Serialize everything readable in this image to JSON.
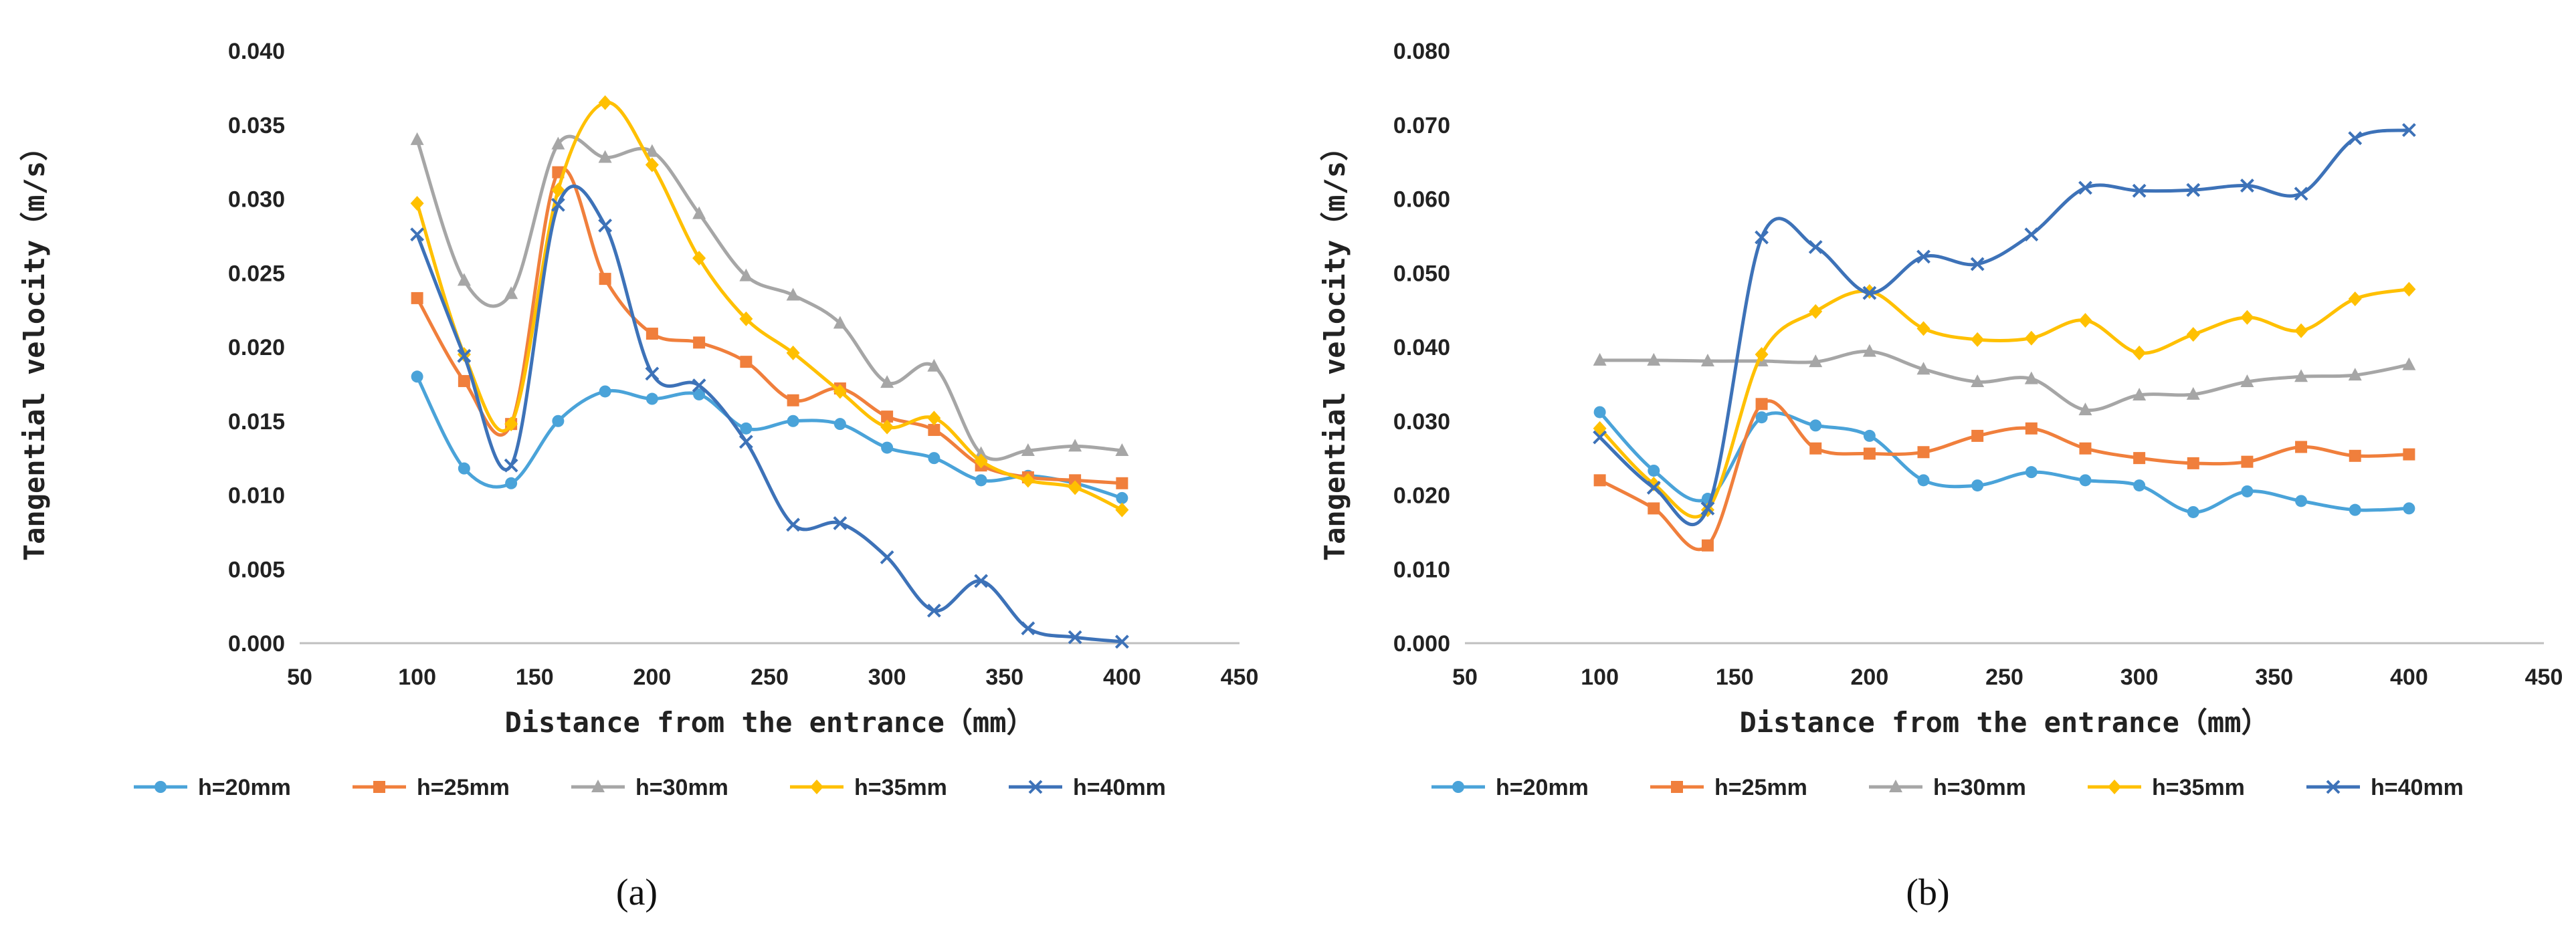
{
  "colors": {
    "h20": "#4aa3d9",
    "h25": "#f07f3c",
    "h30": "#a6a6a6",
    "h35": "#ffc000",
    "h40": "#3d72b8"
  },
  "chart_data": [
    {
      "type": "line",
      "panel_label": "(a)",
      "xlabel": "Distance from the entrance（mm）",
      "ylabel": "Tangential velocity（m/s）",
      "xlim": [
        50,
        450
      ],
      "ylim": [
        0,
        0.04
      ],
      "x_ticks": [
        "50",
        "100",
        "150",
        "200",
        "250",
        "300",
        "350",
        "400",
        "450"
      ],
      "y_ticks": [
        "0.000",
        "0.005",
        "0.010",
        "0.015",
        "0.020",
        "0.025",
        "0.030",
        "0.035",
        "0.040"
      ],
      "legend": "bottom",
      "x": [
        100,
        120,
        140,
        160,
        180,
        200,
        220,
        240,
        260,
        280,
        300,
        320,
        340,
        360,
        380,
        400
      ],
      "series": [
        {
          "name": "h=20mm",
          "color_key": "h20",
          "marker": "circle",
          "values": [
            0.018,
            0.0118,
            0.0108,
            0.015,
            0.017,
            0.0165,
            0.0168,
            0.0145,
            0.015,
            0.0148,
            0.0132,
            0.0125,
            0.011,
            0.0113,
            0.0108,
            0.0098
          ]
        },
        {
          "name": "h=25mm",
          "color_key": "h25",
          "marker": "square",
          "values": [
            0.0233,
            0.0177,
            0.0148,
            0.0318,
            0.0246,
            0.0209,
            0.0203,
            0.019,
            0.0164,
            0.0172,
            0.0153,
            0.0144,
            0.012,
            0.0112,
            0.011,
            0.0108
          ]
        },
        {
          "name": "h=30mm",
          "color_key": "h30",
          "marker": "triangle",
          "values": [
            0.034,
            0.0245,
            0.0236,
            0.0337,
            0.0328,
            0.0332,
            0.029,
            0.0248,
            0.0235,
            0.0216,
            0.0176,
            0.0187,
            0.0128,
            0.013,
            0.0133,
            0.013
          ]
        },
        {
          "name": "h=35mm",
          "color_key": "h35",
          "marker": "diamond",
          "values": [
            0.0297,
            0.0195,
            0.0148,
            0.0306,
            0.0365,
            0.0323,
            0.026,
            0.0219,
            0.0196,
            0.017,
            0.0146,
            0.0152,
            0.0123,
            0.011,
            0.0105,
            0.009
          ]
        },
        {
          "name": "h=40mm",
          "color_key": "h40",
          "marker": "x",
          "values": [
            0.0276,
            0.0194,
            0.012,
            0.0296,
            0.0282,
            0.0182,
            0.0174,
            0.0136,
            0.008,
            0.0081,
            0.0058,
            0.0022,
            0.0042,
            0.001,
            0.0004,
            0.0001
          ]
        }
      ]
    },
    {
      "type": "line",
      "panel_label": "(b)",
      "xlabel": "Distance from the entrance（mm）",
      "ylabel": "Tangential velocity（m/s）",
      "xlim": [
        50,
        450
      ],
      "ylim": [
        0,
        0.08
      ],
      "x_ticks": [
        "50",
        "100",
        "150",
        "200",
        "250",
        "300",
        "350",
        "400",
        "450"
      ],
      "y_ticks": [
        "0.000",
        "0.010",
        "0.020",
        "0.030",
        "0.040",
        "0.050",
        "0.060",
        "0.070",
        "0.080"
      ],
      "legend": "bottom",
      "x": [
        100,
        120,
        140,
        160,
        180,
        200,
        220,
        240,
        260,
        280,
        300,
        320,
        340,
        360,
        380,
        400
      ],
      "series": [
        {
          "name": "h=20mm",
          "color_key": "h20",
          "marker": "circle",
          "values": [
            0.0312,
            0.0233,
            0.0195,
            0.0305,
            0.0294,
            0.028,
            0.022,
            0.0213,
            0.0231,
            0.022,
            0.0213,
            0.0177,
            0.0205,
            0.0192,
            0.018,
            0.0182
          ]
        },
        {
          "name": "h=25mm",
          "color_key": "h25",
          "marker": "square",
          "values": [
            0.022,
            0.0182,
            0.0132,
            0.0323,
            0.0263,
            0.0256,
            0.0258,
            0.028,
            0.029,
            0.0263,
            0.025,
            0.0243,
            0.0245,
            0.0265,
            0.0253,
            0.0255
          ]
        },
        {
          "name": "h=30mm",
          "color_key": "h30",
          "marker": "triangle",
          "values": [
            0.0382,
            0.0382,
            0.0381,
            0.0381,
            0.038,
            0.0394,
            0.037,
            0.0353,
            0.0357,
            0.0315,
            0.0335,
            0.0336,
            0.0353,
            0.036,
            0.0362,
            0.0376
          ]
        },
        {
          "name": "h=35mm",
          "color_key": "h35",
          "marker": "diamond",
          "values": [
            0.029,
            0.0215,
            0.018,
            0.039,
            0.0448,
            0.0475,
            0.0425,
            0.041,
            0.0412,
            0.0436,
            0.0392,
            0.0417,
            0.044,
            0.0422,
            0.0465,
            0.0478
          ]
        },
        {
          "name": "h=40mm",
          "color_key": "h40",
          "marker": "x",
          "values": [
            0.0278,
            0.021,
            0.0182,
            0.0548,
            0.0535,
            0.0473,
            0.0522,
            0.0512,
            0.0552,
            0.0615,
            0.0611,
            0.0612,
            0.0618,
            0.0607,
            0.0682,
            0.0693
          ]
        }
      ]
    }
  ]
}
